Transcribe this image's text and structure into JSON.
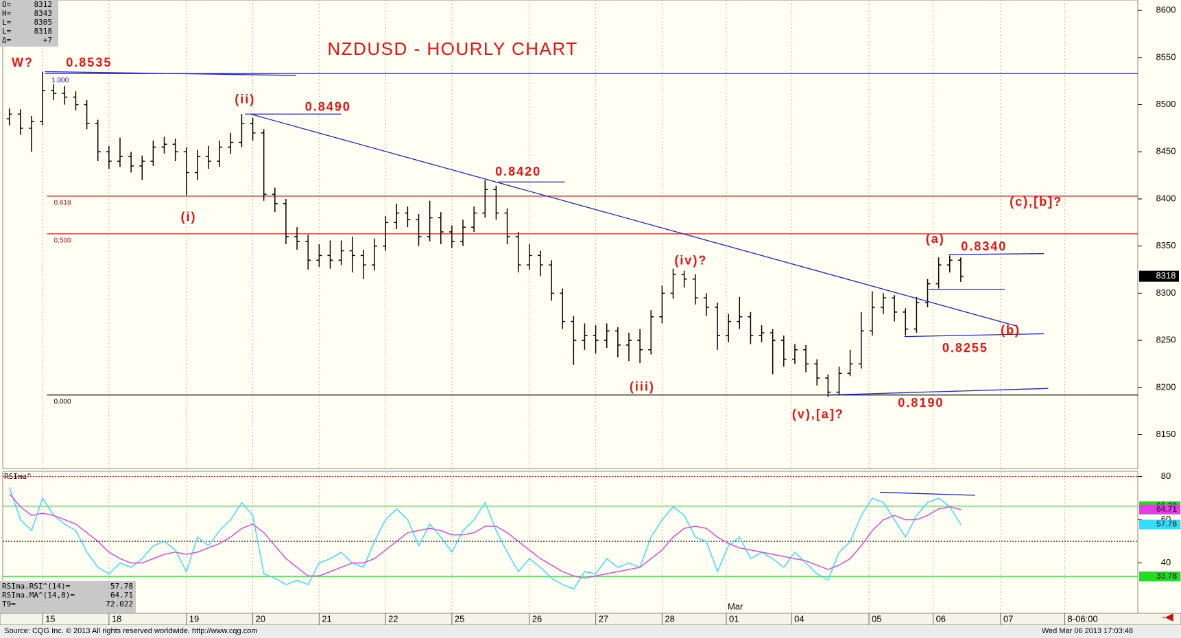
{
  "quote": [
    {
      "label": "O=",
      "value": "8312"
    },
    {
      "label": "H=",
      "value": "8343"
    },
    {
      "label": "L=",
      "value": "8305"
    },
    {
      "label": "L=",
      "value": "8318"
    },
    {
      "label": "Δ=",
      "value": "+7"
    }
  ],
  "source": "Source: CQG Inc. © 2013 All rights reserved worldwide. http://www.cqg.com",
  "timestamp": "Wed Mar 06 2013 17:03:48",
  "month_label": {
    "text": "Mar",
    "x": 61.8
  },
  "chart_data": [
    {
      "type": "ohlc",
      "title": "NZDUSD - HOURLY CHART",
      "color": "#000000",
      "grid": "x",
      "x": [
        -3,
        -2,
        -1,
        0,
        1,
        2,
        3,
        4,
        5,
        6,
        7,
        8,
        9,
        10,
        11,
        12,
        13,
        14,
        15,
        16,
        17,
        18,
        19,
        20,
        21,
        22,
        23,
        24,
        25,
        26,
        27,
        28,
        29,
        30,
        31,
        32,
        33,
        34,
        35,
        36,
        37,
        38,
        39,
        40,
        41,
        42,
        43,
        44,
        45,
        46,
        47,
        48,
        49,
        50,
        51,
        52,
        53,
        54,
        55,
        56,
        57,
        58,
        59,
        60,
        61,
        62,
        63,
        64,
        65,
        66,
        67,
        68,
        69,
        70,
        71,
        72,
        73,
        74,
        75,
        76,
        77,
        78,
        79,
        80,
        81,
        82,
        83
      ],
      "open": [
        8485,
        8490,
        8475,
        8482,
        8515,
        8512,
        8508,
        8500,
        8480,
        8450,
        8440,
        8445,
        8435,
        8440,
        8455,
        8458,
        8450,
        8428,
        8445,
        8440,
        8455,
        8460,
        8480,
        8470,
        8405,
        8395,
        8360,
        8355,
        8335,
        8340,
        8335,
        8345,
        8340,
        8330,
        8350,
        8375,
        8385,
        8378,
        8360,
        8380,
        8365,
        8355,
        8370,
        8385,
        8410,
        8385,
        8360,
        8330,
        8340,
        8330,
        8300,
        8270,
        8250,
        8255,
        8250,
        8260,
        8245,
        8250,
        8240,
        8275,
        8300,
        8320,
        8315,
        8295,
        8285,
        8255,
        8270,
        8275,
        8255,
        8258,
        8250,
        8230,
        8240,
        8225,
        8210,
        8195,
        8215,
        8225,
        8260,
        8285,
        8295,
        8280,
        8262,
        8290,
        8310,
        8330,
        8335
      ],
      "high": [
        8496,
        8495,
        8488,
        8535,
        8522,
        8520,
        8514,
        8505,
        8484,
        8456,
        8465,
        8450,
        8446,
        8462,
        8466,
        8464,
        8455,
        8452,
        8456,
        8462,
        8470,
        8490,
        8486,
        8474,
        8412,
        8400,
        8370,
        8362,
        8352,
        8356,
        8356,
        8360,
        8346,
        8358,
        8382,
        8395,
        8392,
        8384,
        8398,
        8386,
        8372,
        8378,
        8392,
        8420,
        8414,
        8390,
        8365,
        8352,
        8345,
        8335,
        8305,
        8276,
        8268,
        8266,
        8268,
        8264,
        8258,
        8262,
        8282,
        8308,
        8326,
        8324,
        8320,
        8300,
        8290,
        8278,
        8296,
        8280,
        8266,
        8262,
        8255,
        8246,
        8245,
        8230,
        8214,
        8222,
        8240,
        8280,
        8302,
        8300,
        8298,
        8284,
        8296,
        8315,
        8338,
        8340,
        8338
      ],
      "low": [
        8478,
        8468,
        8450,
        8478,
        8505,
        8500,
        8494,
        8474,
        8440,
        8432,
        8434,
        8428,
        8420,
        8435,
        8448,
        8440,
        8404,
        8420,
        8432,
        8434,
        8448,
        8455,
        8462,
        8398,
        8386,
        8352,
        8346,
        8325,
        8328,
        8326,
        8330,
        8322,
        8315,
        8324,
        8345,
        8368,
        8370,
        8350,
        8355,
        8352,
        8348,
        8350,
        8365,
        8380,
        8378,
        8352,
        8322,
        8325,
        8318,
        8292,
        8262,
        8224,
        8240,
        8236,
        8242,
        8232,
        8228,
        8226,
        8235,
        8268,
        8294,
        8306,
        8288,
        8276,
        8240,
        8248,
        8262,
        8246,
        8248,
        8214,
        8222,
        8225,
        8216,
        8202,
        8190,
        8192,
        8212,
        8220,
        8255,
        8278,
        8270,
        8255,
        8258,
        8285,
        8305,
        8322,
        8312
      ],
      "close": [
        8490,
        8475,
        8482,
        8515,
        8512,
        8508,
        8500,
        8480,
        8450,
        8440,
        8445,
        8435,
        8440,
        8455,
        8458,
        8450,
        8428,
        8445,
        8440,
        8455,
        8460,
        8480,
        8470,
        8405,
        8395,
        8360,
        8355,
        8335,
        8340,
        8335,
        8345,
        8340,
        8330,
        8350,
        8375,
        8385,
        8378,
        8360,
        8380,
        8365,
        8355,
        8370,
        8385,
        8410,
        8385,
        8360,
        8330,
        8340,
        8330,
        8300,
        8270,
        8250,
        8255,
        8250,
        8260,
        8245,
        8250,
        8240,
        8275,
        8300,
        8320,
        8315,
        8295,
        8285,
        8255,
        8270,
        8275,
        8255,
        8258,
        8250,
        8230,
        8240,
        8225,
        8210,
        8195,
        8215,
        8225,
        8260,
        8285,
        8295,
        8280,
        8262,
        8290,
        8310,
        8330,
        8335,
        8318
      ],
      "xlim": [
        -3.6,
        99
      ],
      "xticks": [
        {
          "value": 0,
          "label": "15"
        },
        {
          "value": 6,
          "label": "18"
        },
        {
          "value": 13,
          "label": "19"
        },
        {
          "value": 19,
          "label": "20"
        },
        {
          "value": 25,
          "label": "21"
        },
        {
          "value": 31,
          "label": "22"
        },
        {
          "value": 37,
          "label": "25"
        },
        {
          "value": 44,
          "label": "26"
        },
        {
          "value": 50,
          "label": "27"
        },
        {
          "value": 56,
          "label": "28"
        },
        {
          "value": 61.8,
          "label": "01"
        },
        {
          "value": 67.7,
          "label": "04"
        },
        {
          "value": 74.7,
          "label": "05"
        },
        {
          "value": 80.5,
          "label": "06"
        },
        {
          "value": 86.6,
          "label": "07"
        },
        {
          "value": 92.4,
          "label": "8-06:00"
        }
      ],
      "ylim": [
        8114,
        8611
      ],
      "yticks": [
        8150,
        8200,
        8250,
        8300,
        8350,
        8400,
        8450,
        8500,
        8550,
        8600
      ],
      "levels": [
        {
          "value": 8533,
          "label": "1.000",
          "color": "#0000ff",
          "from": 0.2
        },
        {
          "value": 8403,
          "label": "0.618",
          "color": "#ff0000",
          "from": 0.4
        },
        {
          "value": 8363,
          "label": "0.500",
          "color": "#ff0000",
          "from": 0.4
        },
        {
          "value": 8192,
          "label": "0.000",
          "color": "#000000",
          "from": 0.4
        }
      ],
      "lines_color": "#2020d0",
      "lines": [
        {
          "x": [
            0.2,
            22.9
          ],
          "y": [
            8535,
            8531
          ]
        },
        {
          "x": [
            18.3,
            27.0
          ],
          "y": [
            8490,
            8490
          ]
        },
        {
          "x": [
            18.8,
            88.1
          ],
          "y": [
            8490,
            8265
          ]
        },
        {
          "x": [
            41.2,
            47.2
          ],
          "y": [
            8418,
            8418
          ]
        },
        {
          "x": [
            81.9,
            90.5
          ],
          "y": [
            8341,
            8342
          ]
        },
        {
          "x": [
            80.1,
            87.0
          ],
          "y": [
            8304,
            8304
          ]
        },
        {
          "x": [
            77.9,
            90.5
          ],
          "y": [
            8254,
            8257
          ]
        },
        {
          "x": [
            70.9,
            90.9
          ],
          "y": [
            8192,
            8199
          ]
        }
      ],
      "annotation_color": "#ee1111",
      "annotations": [
        {
          "text": "W?",
          "x": -1.8,
          "y": 8544
        },
        {
          "text": "0.8535",
          "x": 4.2,
          "y": 8544
        },
        {
          "text": "(ii)",
          "x": 18.3,
          "y": 8505
        },
        {
          "text": "0.8490",
          "x": 25.8,
          "y": 8497
        },
        {
          "text": "0.8420",
          "x": 43.0,
          "y": 8428
        },
        {
          "text": "(i)",
          "x": 13.2,
          "y": 8380
        },
        {
          "text": "(c),[b]?",
          "x": 89.8,
          "y": 8396
        },
        {
          "text": "(a)",
          "x": 80.7,
          "y": 8357
        },
        {
          "text": "0.8340",
          "x": 85.1,
          "y": 8349
        },
        {
          "text": "(iv)?",
          "x": 58.6,
          "y": 8334
        },
        {
          "text": "(b)",
          "x": 87.5,
          "y": 8260
        },
        {
          "text": "0.8255",
          "x": 83.4,
          "y": 8241
        },
        {
          "text": "(iii)",
          "x": 54.2,
          "y": 8200
        },
        {
          "text": "(v),[a]?",
          "x": 70.1,
          "y": 8171
        },
        {
          "text": "0.8190",
          "x": 79.4,
          "y": 8183
        }
      ]
    },
    {
      "type": "line",
      "title": "RSIma^",
      "series": [
        {
          "name": "RSIma.RSI^(14)=",
          "color": "#33ddff",
          "values": [
            75,
            60,
            55,
            70,
            62,
            58,
            55,
            45,
            38,
            35,
            40,
            38,
            42,
            48,
            50,
            46,
            36,
            52,
            48,
            55,
            60,
            68,
            62,
            35,
            33,
            30,
            32,
            30,
            40,
            42,
            45,
            40,
            38,
            50,
            60,
            65,
            60,
            48,
            58,
            52,
            45,
            55,
            60,
            68,
            55,
            45,
            36,
            42,
            38,
            33,
            30,
            28,
            36,
            35,
            42,
            38,
            40,
            38,
            52,
            60,
            66,
            62,
            52,
            50,
            36,
            48,
            52,
            42,
            45,
            42,
            38,
            45,
            40,
            35,
            32,
            45,
            50,
            62,
            70,
            68,
            60,
            52,
            62,
            68,
            70,
            66,
            57.78
          ]
        },
        {
          "name": "RSIma.MA^(14,8)=",
          "color": "#e040e0",
          "values": [
            72,
            66,
            62,
            63,
            62,
            60,
            58,
            54,
            50,
            45,
            42,
            40,
            40,
            42,
            44,
            45,
            44,
            45,
            47,
            49,
            52,
            56,
            58,
            54,
            48,
            42,
            38,
            34,
            34,
            36,
            38,
            40,
            40,
            42,
            46,
            50,
            54,
            55,
            56,
            55,
            53,
            53,
            54,
            57,
            57,
            54,
            50,
            46,
            42,
            39,
            36,
            34,
            33,
            34,
            35,
            36,
            37,
            38,
            42,
            46,
            52,
            56,
            57,
            56,
            52,
            49,
            47,
            46,
            45,
            44,
            43,
            42,
            41,
            39,
            37,
            39,
            42,
            48,
            55,
            60,
            62,
            60,
            60,
            62,
            65,
            66,
            64.71
          ]
        }
      ],
      "extra": {
        "name": "T9=",
        "value": "72.022"
      },
      "ylim": [
        16.7,
        82.4
      ],
      "yticks": [
        40,
        60,
        80
      ],
      "levels": [
        {
          "value": 80,
          "color": "#ff0000",
          "dotted": true
        },
        {
          "value": 66.28,
          "color": "#22dd22",
          "boxed": true
        },
        {
          "value": 50,
          "color": "#000000",
          "dotted": true
        },
        {
          "value": 33.78,
          "color": "#22dd22",
          "boxed": true
        }
      ],
      "lines_color": "#2020d0",
      "lines": [
        {
          "x": [
            75.7,
            84.3
          ],
          "y": [
            72.7,
            71.3
          ]
        }
      ]
    }
  ]
}
